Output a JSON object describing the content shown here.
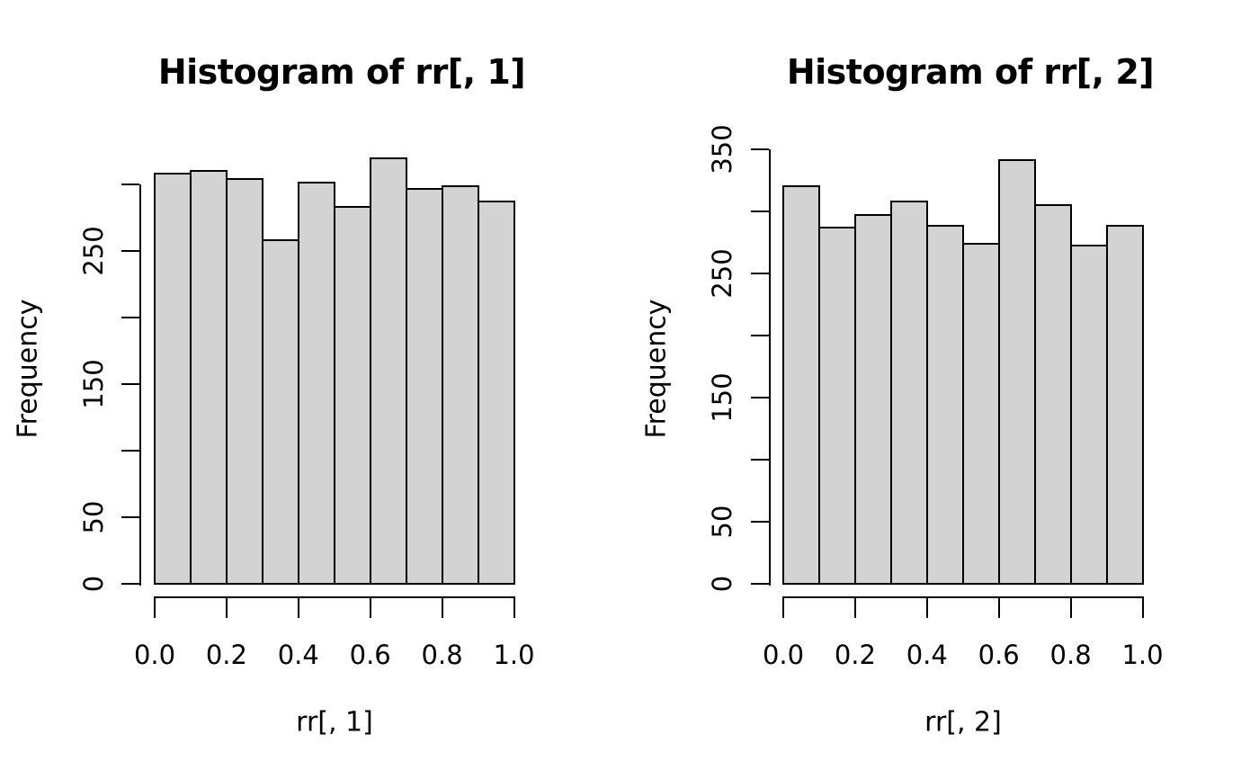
{
  "figure": {
    "background": "#ffffff",
    "text_color": "#000000"
  },
  "chart_data": [
    {
      "type": "bar",
      "subtype": "histogram",
      "title": "Histogram of rr[, 1]",
      "xlabel": "rr[, 1]",
      "ylabel": "Frequency",
      "bin_start": 0.0,
      "bin_width": 0.1,
      "n_bins": 10,
      "categories": [
        "0.0-0.1",
        "0.1-0.2",
        "0.2-0.3",
        "0.3-0.4",
        "0.4-0.5",
        "0.5-0.6",
        "0.6-0.7",
        "0.7-0.8",
        "0.8-0.9",
        "0.9-1.0"
      ],
      "values": [
        309,
        311,
        305,
        259,
        302,
        284,
        320,
        297,
        299,
        288
      ],
      "x_tick_labels": [
        "0.0",
        "0.2",
        "0.4",
        "0.6",
        "0.8",
        "1.0"
      ],
      "y_ticks": [
        0,
        50,
        100,
        150,
        200,
        250,
        300
      ],
      "y_tick_labels": [
        "0",
        "50",
        "",
        "150",
        "",
        "250",
        ""
      ],
      "ylim": [
        0,
        300
      ],
      "xlim": [
        0.0,
        1.0
      ],
      "grid": "off",
      "legend": "none",
      "bar_fill": "#d3d3d3",
      "bar_stroke": "#000000"
    },
    {
      "type": "bar",
      "subtype": "histogram",
      "title": "Histogram of rr[, 2]",
      "xlabel": "rr[, 2]",
      "ylabel": "Frequency",
      "bin_start": 0.0,
      "bin_width": 0.1,
      "n_bins": 10,
      "categories": [
        "0.0-0.1",
        "0.1-0.2",
        "0.2-0.3",
        "0.3-0.4",
        "0.4-0.5",
        "0.5-0.6",
        "0.6-0.7",
        "0.7-0.8",
        "0.8-0.9",
        "0.9-1.0"
      ],
      "values": [
        321,
        288,
        298,
        309,
        289,
        275,
        342,
        306,
        273,
        289
      ],
      "x_tick_labels": [
        "0.0",
        "0.2",
        "0.4",
        "0.6",
        "0.8",
        "1.0"
      ],
      "y_ticks": [
        0,
        50,
        100,
        150,
        200,
        250,
        300,
        350
      ],
      "y_tick_labels": [
        "0",
        "50",
        "",
        "150",
        "",
        "250",
        "",
        "350"
      ],
      "ylim": [
        0,
        350
      ],
      "xlim": [
        0.0,
        1.0
      ],
      "grid": "off",
      "legend": "none",
      "bar_fill": "#d3d3d3",
      "bar_stroke": "#000000"
    }
  ]
}
